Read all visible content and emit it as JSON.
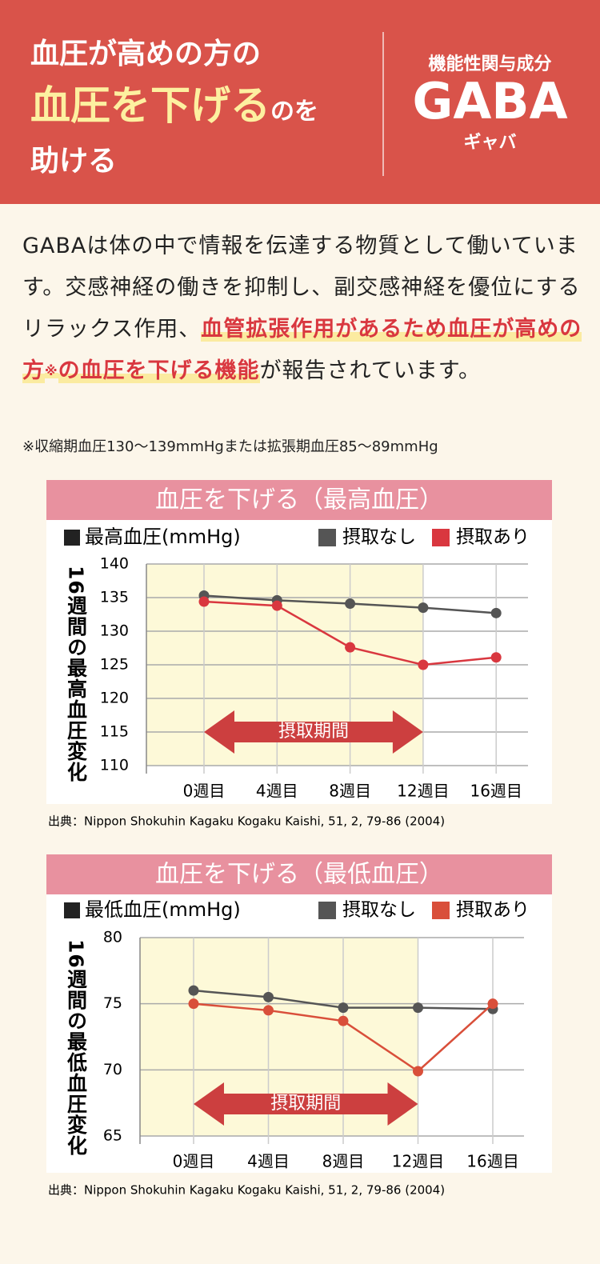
{
  "header": {
    "line1": "血圧が高めの方の",
    "highlight": "血圧を下げる",
    "small": "のを",
    "line3": "助ける",
    "badge_label": "機能性関与成分",
    "badge_title": "GABA",
    "badge_reading": "ギャバ"
  },
  "body": {
    "text_before": "GABAは体の中で情報を伝達する物質として働いています。交感神経の働きを抑制し、副交感神経を優位にするリラックス作用、",
    "highlight": "血管拡張作用があるため血圧が高めの方",
    "mark": "※",
    "highlight2": "の血圧を下げる機能",
    "text_after": "が報告されています。",
    "note": "※収縮期血圧130〜139mmHgまたは拡張期血圧85〜89mmHg"
  },
  "chart_data": [
    {
      "type": "line",
      "title": "血圧を下げる（最高血圧）",
      "legend_title": "最高血圧(mmHg)",
      "y_label": "16週間の最高血圧変化",
      "categories": [
        "0週目",
        "4週目",
        "8週目",
        "12週目",
        "16週目"
      ],
      "series": [
        {
          "name": "摂取なし",
          "color": "#555555",
          "values": [
            135.3,
            134.6,
            134.1,
            133.5,
            132.7
          ]
        },
        {
          "name": "摂取あり",
          "color": "#d9373f",
          "values": [
            134.4,
            133.8,
            127.6,
            125,
            126.1
          ]
        }
      ],
      "ylim": [
        110,
        140
      ],
      "yticks": [
        110,
        115,
        120,
        125,
        130,
        135,
        140
      ],
      "grid": true,
      "period_label": "摂取期間",
      "source": "出典：Nippon Shokuhin Kagaku Kogaku Kaishi, 51, 2, 79-86 (2004)"
    },
    {
      "type": "line",
      "title": "血圧を下げる（最低血圧）",
      "legend_title": "最低血圧(mmHg)",
      "y_label": "16週間の最低血圧変化",
      "categories": [
        "0週目",
        "4週目",
        "8週目",
        "12週目",
        "16週目"
      ],
      "series": [
        {
          "name": "摂取なし",
          "color": "#555555",
          "values": [
            76,
            75.5,
            74.7,
            74.7,
            74.6
          ]
        },
        {
          "name": "摂取あり",
          "color": "#d94f3a",
          "values": [
            75,
            74.5,
            73.7,
            69.9,
            75
          ]
        }
      ],
      "ylim": [
        65,
        80
      ],
      "yticks": [
        65,
        70,
        75,
        80
      ],
      "grid": true,
      "period_label": "摂取期間",
      "source": "出典：Nippon Shokuhin Kagaku Kogaku Kaishi, 51, 2, 79-86 (2004)"
    }
  ]
}
